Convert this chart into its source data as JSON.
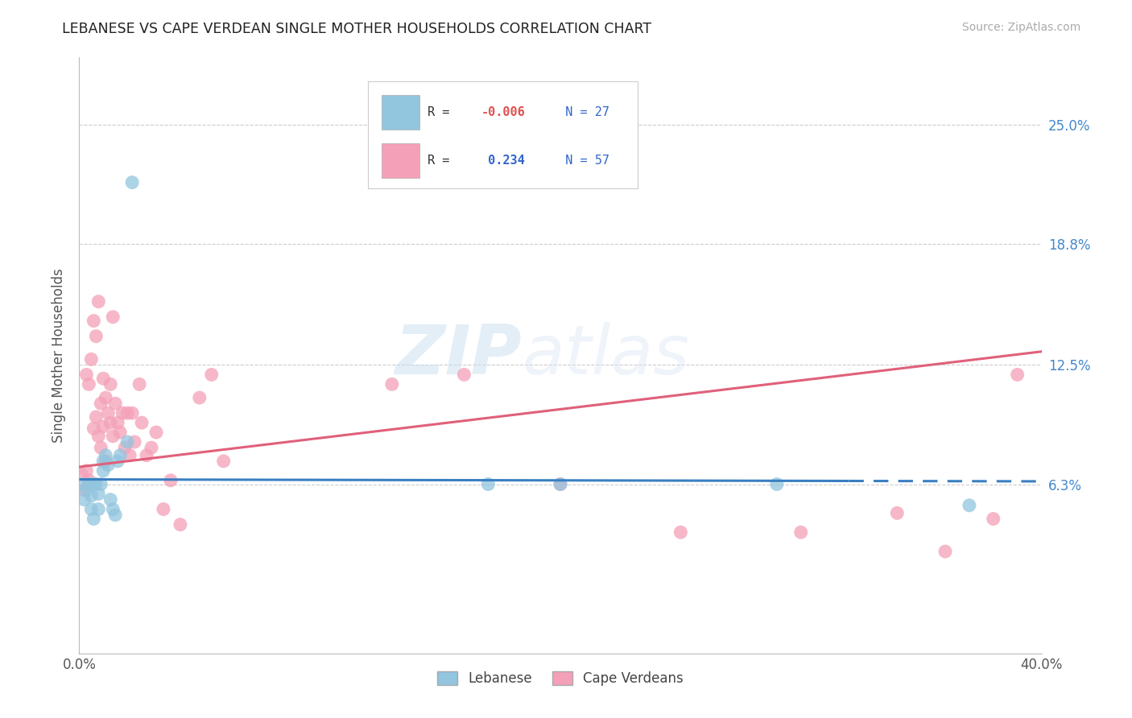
{
  "title": "LEBANESE VS CAPE VERDEAN SINGLE MOTHER HOUSEHOLDS CORRELATION CHART",
  "source": "Source: ZipAtlas.com",
  "ylabel": "Single Mother Households",
  "xlim": [
    0.0,
    0.4
  ],
  "ylim": [
    -0.025,
    0.285
  ],
  "yticks": [
    0.063,
    0.125,
    0.188,
    0.25
  ],
  "ytick_labels": [
    "6.3%",
    "12.5%",
    "18.8%",
    "25.0%"
  ],
  "color_blue": "#92c5de",
  "color_pink": "#f4a0b8",
  "line_blue_solid_end": 0.32,
  "line_blue": "#3a7fc1",
  "line_pink": "#e0607a",
  "watermark_zip": "ZIP",
  "watermark_atlas": "atlas",
  "lebanese_x": [
    0.001,
    0.002,
    0.003,
    0.004,
    0.005,
    0.005,
    0.006,
    0.006,
    0.007,
    0.008,
    0.008,
    0.009,
    0.01,
    0.01,
    0.011,
    0.012,
    0.013,
    0.014,
    0.015,
    0.016,
    0.017,
    0.02,
    0.022,
    0.17,
    0.2,
    0.29,
    0.37
  ],
  "lebanese_y": [
    0.063,
    0.055,
    0.06,
    0.063,
    0.057,
    0.05,
    0.063,
    0.045,
    0.063,
    0.058,
    0.05,
    0.063,
    0.07,
    0.075,
    0.078,
    0.073,
    0.055,
    0.05,
    0.047,
    0.075,
    0.078,
    0.085,
    0.22,
    0.063,
    0.063,
    0.063,
    0.052
  ],
  "capeverdean_x": [
    0.001,
    0.002,
    0.003,
    0.003,
    0.004,
    0.004,
    0.005,
    0.006,
    0.006,
    0.007,
    0.007,
    0.008,
    0.008,
    0.009,
    0.009,
    0.01,
    0.01,
    0.011,
    0.011,
    0.012,
    0.013,
    0.013,
    0.014,
    0.014,
    0.015,
    0.016,
    0.017,
    0.018,
    0.019,
    0.02,
    0.021,
    0.022,
    0.023,
    0.025,
    0.026,
    0.028,
    0.03,
    0.032,
    0.035,
    0.038,
    0.042,
    0.05,
    0.055,
    0.06,
    0.13,
    0.16,
    0.2,
    0.25,
    0.3,
    0.34,
    0.36,
    0.38,
    0.39
  ],
  "capeverdean_y": [
    0.068,
    0.06,
    0.07,
    0.12,
    0.115,
    0.065,
    0.128,
    0.092,
    0.148,
    0.14,
    0.098,
    0.088,
    0.158,
    0.082,
    0.105,
    0.093,
    0.118,
    0.075,
    0.108,
    0.1,
    0.095,
    0.115,
    0.088,
    0.15,
    0.105,
    0.095,
    0.09,
    0.1,
    0.082,
    0.1,
    0.078,
    0.1,
    0.085,
    0.115,
    0.095,
    0.078,
    0.082,
    0.09,
    0.05,
    0.065,
    0.042,
    0.108,
    0.12,
    0.075,
    0.115,
    0.12,
    0.063,
    0.038,
    0.038,
    0.048,
    0.028,
    0.045,
    0.12
  ],
  "leb_line_y0": 0.0655,
  "leb_line_y1": 0.0645,
  "cape_line_y0": 0.072,
  "cape_line_y1": 0.132
}
